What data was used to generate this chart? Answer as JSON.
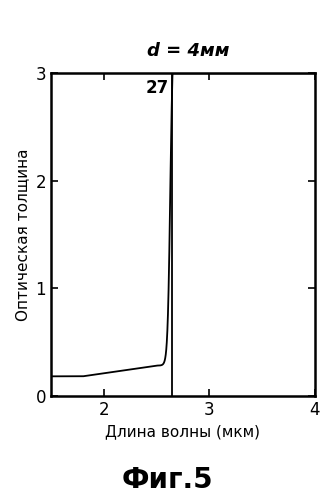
{
  "title_text": "d = 4мм",
  "title_d": "d = 4",
  "title_mm": "мм",
  "label_number": "27",
  "xlabel": "Длина волны (мкм)",
  "ylabel": "Оптическая толщина",
  "fig_caption": "Фиг.5",
  "xlim": [
    1.5,
    4.0
  ],
  "ylim": [
    0,
    3
  ],
  "xticks": [
    2,
    3,
    4
  ],
  "yticks": [
    0,
    1,
    2,
    3
  ],
  "vertical_line_x": 2.65,
  "background_color": "#ffffff",
  "curve_color": "#000000",
  "vline_color": "#000000"
}
